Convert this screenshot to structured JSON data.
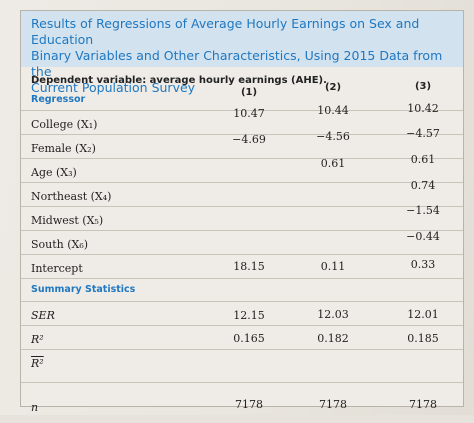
{
  "title": {
    "lines": [
      "Results of Regressions of Average Hourly Earnings on Sex and Education",
      "Binary Variables and Other Characteristics, Using 2015 Data from the",
      "Current Population Survey"
    ]
  },
  "dependent_variable": "Dependent variable: average hourly earnings (AHE).",
  "regressor_header": "Regressor",
  "columns": [
    "(1)",
    "(2)",
    "(3)"
  ],
  "rows": [
    {
      "label": "College (X₁)",
      "v1": "10.47",
      "v2": "10.44",
      "v3": "10.42"
    },
    {
      "label": "Female (X₂)",
      "v1": "−4.69",
      "v2": "−4.56",
      "v3": "−4.57"
    },
    {
      "label": "Age (X₃)",
      "v1": "",
      "v2": "0.61",
      "v3": "0.61"
    },
    {
      "label": "Northeast (X₄)",
      "v1": "",
      "v2": "",
      "v3": "0.74"
    },
    {
      "label": "Midwest (X₅)",
      "v1": "",
      "v2": "",
      "v3": "−1.54"
    },
    {
      "label": "South (X₆)",
      "v1": "",
      "v2": "",
      "v3": "−0.44"
    },
    {
      "label": "Intercept",
      "v1": "18.15",
      "v2": "0.11",
      "v3": "0.33"
    }
  ],
  "summary_header": "Summary Statistics",
  "summary": [
    {
      "label": "SER",
      "v1": "12.15",
      "v2": "12.03",
      "v3": "12.01"
    },
    {
      "label": "R²",
      "v1": "0.165",
      "v2": "0.182",
      "v3": "0.185"
    },
    {
      "label": "R²",
      "v1": "",
      "v2": "",
      "v3": ""
    },
    {
      "label": "n",
      "v1": "7178",
      "v2": "7178",
      "v3": "7178"
    }
  ]
}
